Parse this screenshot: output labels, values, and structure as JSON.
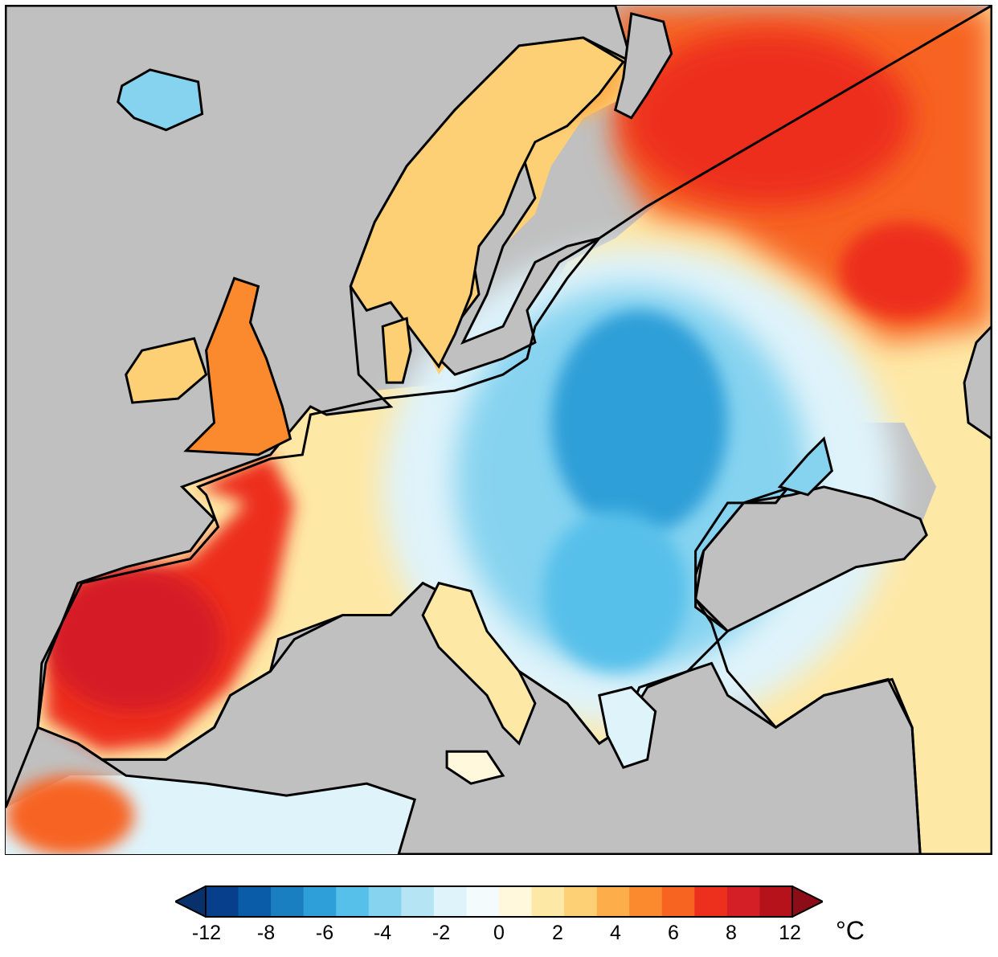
{
  "map": {
    "land_color": "#c0c0c0",
    "coastline_color": "#000000"
  },
  "colorbar": {
    "colors": [
      "#08306b",
      "#083f8c",
      "#0a5ca8",
      "#1a7fc1",
      "#2e9fd8",
      "#56c0ea",
      "#86d3f0",
      "#b5e5f5",
      "#dff3fa",
      "#f4fbfd",
      "#fff8dc",
      "#fee8a6",
      "#fdd076",
      "#fdae4b",
      "#fb8a2f",
      "#f76320",
      "#ed2f1e",
      "#d51f26",
      "#b5121b",
      "#8c0d17"
    ],
    "tick_labels": [
      "-12",
      "-8",
      "-6",
      "-4",
      "-2",
      "0",
      "2",
      "4",
      "6",
      "8",
      "12"
    ],
    "unit": "°C"
  }
}
